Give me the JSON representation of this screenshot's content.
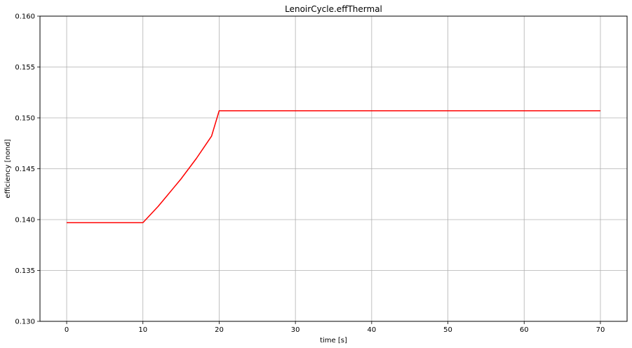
{
  "chart_data": {
    "type": "line",
    "title": "LenoirCycle.effThermal",
    "xlabel": "time [s]",
    "ylabel": "efficiency [nond]",
    "xlim": [
      -3.5,
      73.5
    ],
    "ylim": [
      0.13,
      0.16
    ],
    "x_ticks": [
      0,
      10,
      20,
      30,
      40,
      50,
      60,
      70
    ],
    "y_ticks": [
      0.13,
      0.135,
      0.14,
      0.145,
      0.15,
      0.155,
      0.16
    ],
    "y_tick_labels": [
      "0.130",
      "0.135",
      "0.140",
      "0.145",
      "0.150",
      "0.155",
      "0.160"
    ],
    "grid": true,
    "series": [
      {
        "color": "#ff0000",
        "x": [
          0,
          10,
          11,
          12,
          13,
          14,
          15,
          16,
          17,
          18,
          19,
          20,
          30,
          40,
          50,
          60,
          70
        ],
        "y": [
          0.1397,
          0.1397,
          0.1405,
          0.1413,
          0.1422,
          0.1431,
          0.144,
          0.145,
          0.146,
          0.1471,
          0.1482,
          0.1507,
          0.1507,
          0.1507,
          0.1507,
          0.1507,
          0.1507
        ]
      }
    ]
  }
}
